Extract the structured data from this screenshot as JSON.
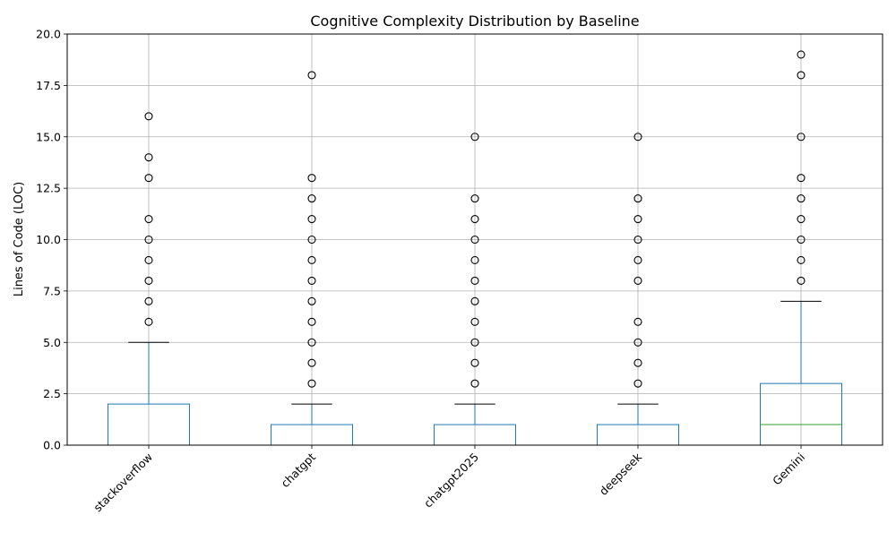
{
  "chart_data": {
    "type": "box",
    "title": "Cognitive Complexity Distribution by Baseline",
    "xlabel": "",
    "ylabel": "Lines of Code (LOC)",
    "ylim": [
      0,
      20
    ],
    "yticks": [
      "0.0",
      "2.5",
      "5.0",
      "7.5",
      "10.0",
      "12.5",
      "15.0",
      "17.5",
      "20.0"
    ],
    "grid": true,
    "categories": [
      "stackoverflow",
      "chatgpt",
      "chatgpt2025",
      "deepseek",
      "Gemini"
    ],
    "boxes": [
      {
        "q1": 0,
        "median": 0,
        "q3": 2,
        "whisker_low": 0,
        "whisker_high": 5,
        "outliers": [
          6,
          7,
          8,
          9,
          10,
          11,
          13,
          14,
          16
        ]
      },
      {
        "q1": 0,
        "median": 0,
        "q3": 1,
        "whisker_low": 0,
        "whisker_high": 2,
        "outliers": [
          3,
          4,
          5,
          6,
          7,
          8,
          9,
          10,
          11,
          12,
          13,
          18
        ]
      },
      {
        "q1": 0,
        "median": 0,
        "q3": 1,
        "whisker_low": 0,
        "whisker_high": 2,
        "outliers": [
          3,
          4,
          5,
          6,
          7,
          8,
          9,
          10,
          11,
          12,
          15
        ]
      },
      {
        "q1": 0,
        "median": 0,
        "q3": 1,
        "whisker_low": 0,
        "whisker_high": 2,
        "outliers": [
          3,
          4,
          5,
          6,
          8,
          9,
          10,
          11,
          12,
          15
        ]
      },
      {
        "q1": 0,
        "median": 1,
        "q3": 3,
        "whisker_low": 0,
        "whisker_high": 7,
        "outliers": [
          8,
          9,
          10,
          11,
          12,
          13,
          15,
          18,
          19
        ]
      }
    ],
    "colors": {
      "box": "#1f77b4",
      "median": "#2ca02c",
      "whisker_cap": "#000000",
      "grid": "#b0b0b0",
      "outlier": "#000000"
    }
  }
}
